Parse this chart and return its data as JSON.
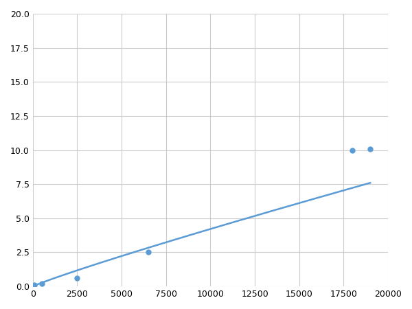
{
  "x": [
    100,
    500,
    2500,
    6500,
    18000,
    19000
  ],
  "y": [
    0.1,
    0.2,
    0.6,
    2.5,
    10.0,
    10.1
  ],
  "line_color": "#5b9bd5",
  "marker_color": "#5b9bd5",
  "marker_size": 5,
  "xlim": [
    0,
    20000
  ],
  "ylim": [
    0,
    20.0
  ],
  "xticks": [
    0,
    2500,
    5000,
    7500,
    10000,
    12500,
    15000,
    17500,
    20000
  ],
  "yticks": [
    0.0,
    2.5,
    5.0,
    7.5,
    10.0,
    12.5,
    15.0,
    17.5,
    20.0
  ],
  "grid_color": "#cccccc",
  "bg_color": "#ffffff",
  "fig_bg_color": "#ffffff",
  "linewidth": 1.8
}
